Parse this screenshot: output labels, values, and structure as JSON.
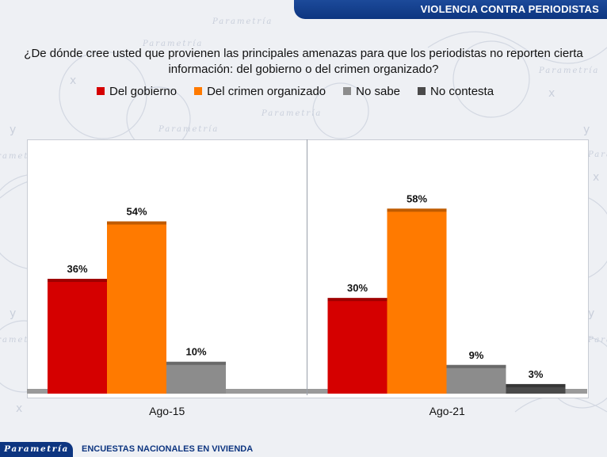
{
  "header": {
    "title": "VIOLENCIA CONTRA PERIODISTAS"
  },
  "question": "¿De dónde cree usted que provienen las principales amenazas para que los periodistas no reporten cierta información: del gobierno o del crimen organizado?",
  "footer": {
    "brand": "Parametría",
    "text": "ENCUESTAS NACIONALES EN VIVIENDA"
  },
  "watermark": {
    "word": "Parametría"
  },
  "colors": {
    "gobierno": "#d50000",
    "crimen": "#ff7a00",
    "no_sabe": "#8c8c8c",
    "no_contesta": "#4a4a4a"
  },
  "chart_data": {
    "type": "bar",
    "title": "",
    "xlabel": "",
    "ylabel": "",
    "categories": [
      "Ago-15",
      "Ago-21"
    ],
    "series": [
      {
        "name": "Del gobierno",
        "values": [
          36,
          30
        ],
        "labels": [
          "36%",
          "30%"
        ],
        "color": "#d50000"
      },
      {
        "name": "Del crimen organizado",
        "values": [
          54,
          58
        ],
        "labels": [
          "54%",
          "58%"
        ],
        "color": "#ff7a00"
      },
      {
        "name": "No sabe",
        "values": [
          10,
          9
        ],
        "labels": [
          "10%",
          "9%"
        ],
        "color": "#8c8c8c"
      },
      {
        "name": "No contesta",
        "values": [
          null,
          3
        ],
        "labels": [
          "",
          "3%"
        ],
        "color": "#4a4a4a"
      }
    ],
    "ylim": [
      0,
      72
    ],
    "grid": false,
    "legend": "top"
  }
}
